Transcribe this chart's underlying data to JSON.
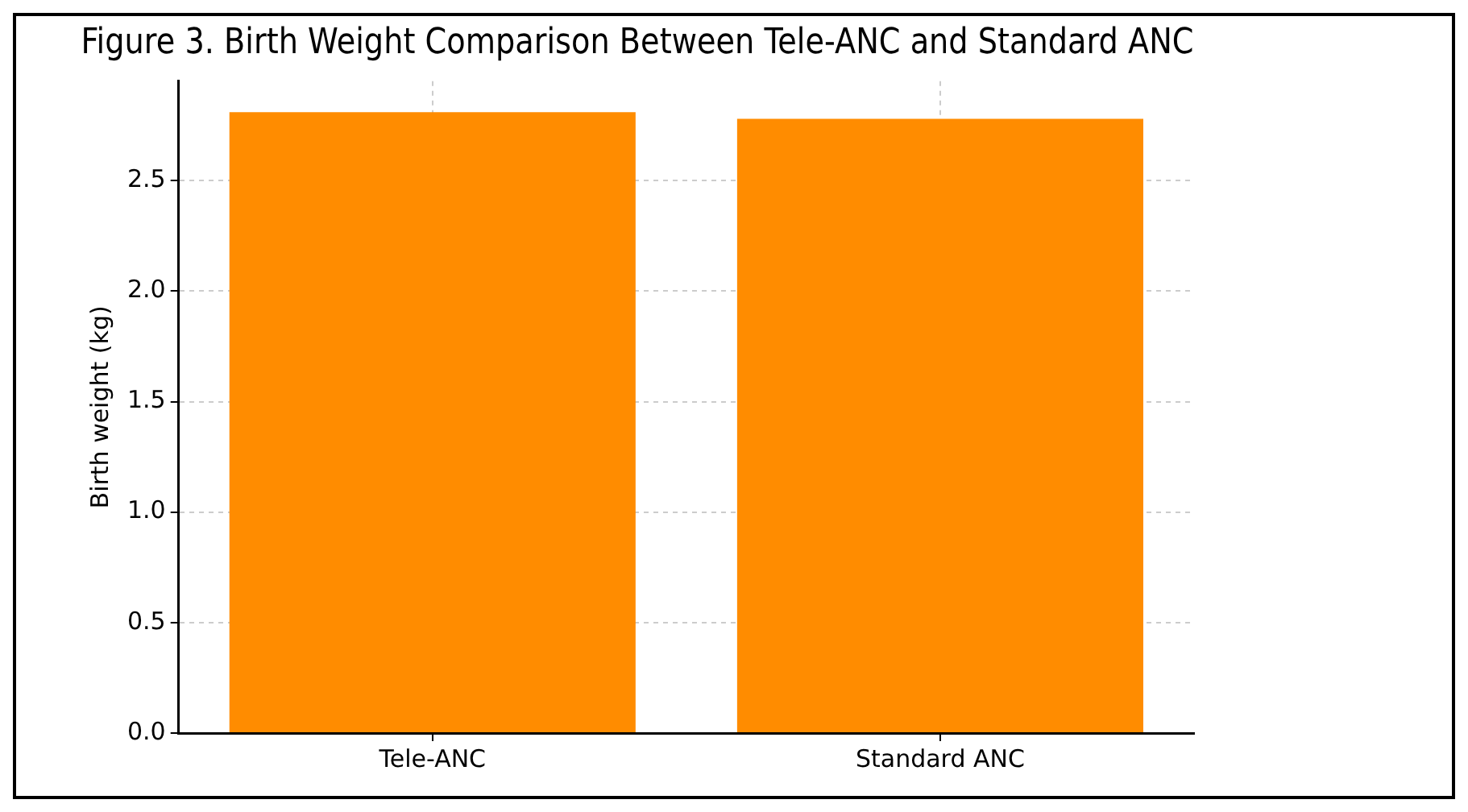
{
  "chart_data": {
    "type": "bar",
    "title": "Figure 3. Birth Weight Comparison Between Tele-ANC and Standard ANC",
    "ylabel": "Birth weight (kg)",
    "categories": [
      "Tele-ANC",
      "Standard ANC"
    ],
    "values": [
      2.81,
      2.78
    ],
    "color": "#ff8c00",
    "ylim": [
      0,
      2.95
    ],
    "yticks": [
      {
        "value": 0,
        "label": "0.0"
      },
      {
        "value": 0.5,
        "label": "0.5"
      },
      {
        "value": 1,
        "label": "1.0"
      },
      {
        "value": 1.5,
        "label": "1.5"
      },
      {
        "value": 2,
        "label": "2.0"
      },
      {
        "value": 2.5,
        "label": "2.5"
      }
    ],
    "grid": true
  }
}
